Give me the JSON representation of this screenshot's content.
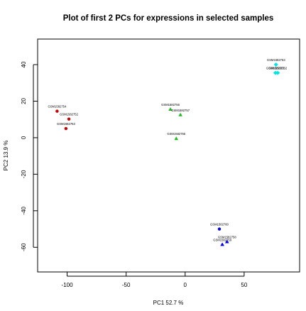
{
  "chart_data": {
    "type": "scatter",
    "title": "Plot of first 2 PCs for expressions in selected samples",
    "xlabel": "PC1 52.7 %",
    "ylabel": "PC2 13.9 %",
    "xlim": [
      -125,
      97
    ],
    "ylim": [
      -73.5,
      54
    ],
    "xticks": [
      -100,
      -50,
      0,
      50
    ],
    "yticks": [
      -60,
      -40,
      -20,
      0,
      20,
      40
    ],
    "grid": false,
    "points": [
      {
        "label": "GSM1582754",
        "x": -108.5,
        "y": 14.5,
        "color": "#cc0000",
        "shape": "circle"
      },
      {
        "label": "GSM1582752",
        "x": -98.5,
        "y": 10.2,
        "color": "#cc0000",
        "shape": "circle"
      },
      {
        "label": "GSM1582753",
        "x": -101,
        "y": 5,
        "color": "#cc0000",
        "shape": "circle"
      },
      {
        "label": "GSM1582756",
        "x": -12.5,
        "y": 15.5,
        "color": "#22bb22",
        "shape": "triangle"
      },
      {
        "label": "GSM1582757",
        "x": -4,
        "y": 12.5,
        "color": "#22bb22",
        "shape": "triangle"
      },
      {
        "label": "GSM1582755",
        "x": -7.5,
        "y": -0.5,
        "color": "#22bb22",
        "shape": "triangle"
      },
      {
        "label": "GSM1582763",
        "x": 77,
        "y": 40,
        "color": "#00e5e5",
        "shape": "diamond"
      },
      {
        "label": "GSM1582761",
        "x": 76.5,
        "y": 35.5,
        "color": "#00e5e5",
        "shape": "diamond"
      },
      {
        "label": "GSM1582762",
        "x": 78.5,
        "y": 35.5,
        "color": "#00e5e5",
        "shape": "diamond"
      },
      {
        "label": "GSM1582760",
        "x": 29,
        "y": -50,
        "color": "#0000ee",
        "shape": "circle"
      },
      {
        "label": "GSM1582758",
        "x": 35.5,
        "y": -57,
        "color": "#0000ee",
        "shape": "triangle"
      },
      {
        "label": "GSM1582759",
        "x": 31.5,
        "y": -58.5,
        "color": "#0000ee",
        "shape": "triangle"
      }
    ]
  }
}
